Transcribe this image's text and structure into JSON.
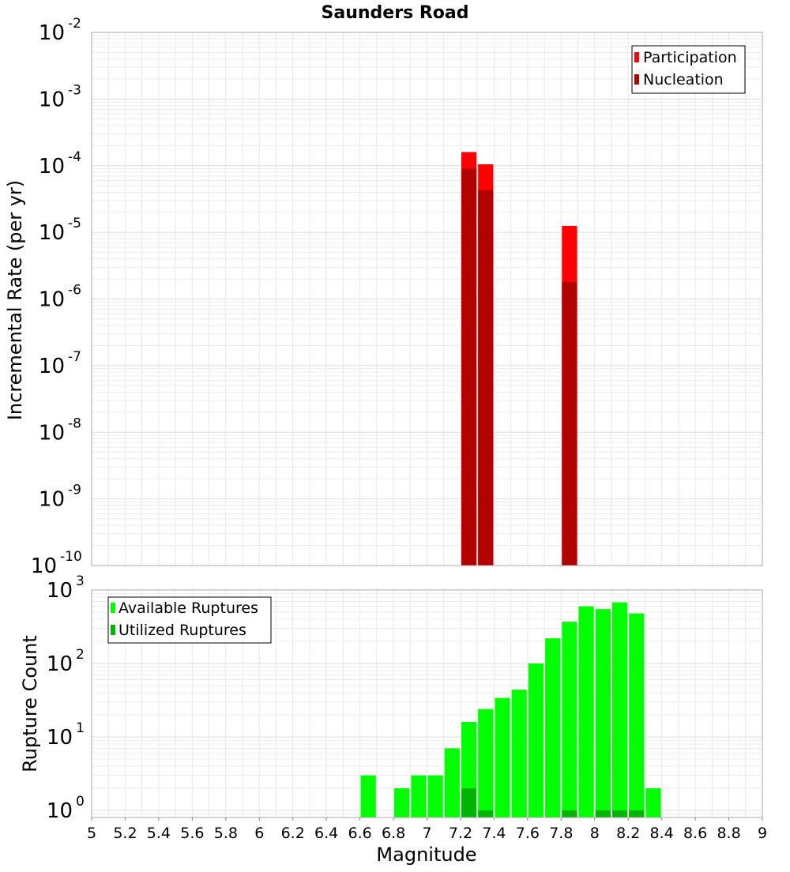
{
  "chart_data": [
    {
      "type": "bar",
      "title": "Saunders Road",
      "ylabel": "Incremental Rate (per yr)",
      "xlabel": "",
      "yscale": "log",
      "ylim": [
        1e-10,
        0.01
      ],
      "xlim": [
        5,
        9
      ],
      "bin_width": 0.1,
      "x": [
        7.25,
        7.35,
        7.85
      ],
      "series": [
        {
          "name": "Participation",
          "color": "#ff0000",
          "values": [
            0.00016,
            0.000105,
            1.25e-05
          ]
        },
        {
          "name": "Nucleation",
          "color": "#b30000",
          "values": [
            9e-05,
            4.3e-05,
            1.8e-06
          ]
        }
      ],
      "ytick_exponents": [
        -2,
        -3,
        -4,
        -5,
        -6,
        -7,
        -8,
        -9,
        -10
      ],
      "legend_position": "top-right",
      "grid": true
    },
    {
      "type": "bar",
      "title": "",
      "ylabel": "Rupture Count",
      "xlabel": "Magnitude",
      "yscale": "log",
      "ylim": [
        0.8,
        1000
      ],
      "xlim": [
        5,
        9
      ],
      "bin_width": 0.1,
      "x": [
        6.65,
        6.85,
        6.95,
        7.05,
        7.15,
        7.25,
        7.35,
        7.45,
        7.55,
        7.65,
        7.75,
        7.85,
        7.95,
        8.05,
        8.15,
        8.25,
        8.35
      ],
      "series": [
        {
          "name": "Available Ruptures",
          "color": "#00ff00",
          "values": [
            3,
            2,
            3,
            3,
            7,
            16,
            24,
            34,
            44,
            100,
            220,
            370,
            600,
            550,
            680,
            480,
            2
          ]
        },
        {
          "name": "Utilized Ruptures",
          "color": "#00b300",
          "values": [
            0,
            0,
            0,
            0,
            0,
            2,
            1,
            0,
            0,
            0,
            0,
            1,
            0,
            1,
            1,
            1,
            0
          ]
        }
      ],
      "ytick_exponents": [
        3,
        2,
        1,
        0
      ],
      "xticks": [
        "5",
        "5.2",
        "5.4",
        "5.6",
        "5.8",
        "6",
        "6.2",
        "6.4",
        "6.6",
        "6.8",
        "7",
        "7.2",
        "7.4",
        "7.6",
        "7.8",
        "8",
        "8.2",
        "8.4",
        "8.6",
        "8.8",
        "9"
      ],
      "legend_position": "top-left",
      "grid": true
    }
  ]
}
